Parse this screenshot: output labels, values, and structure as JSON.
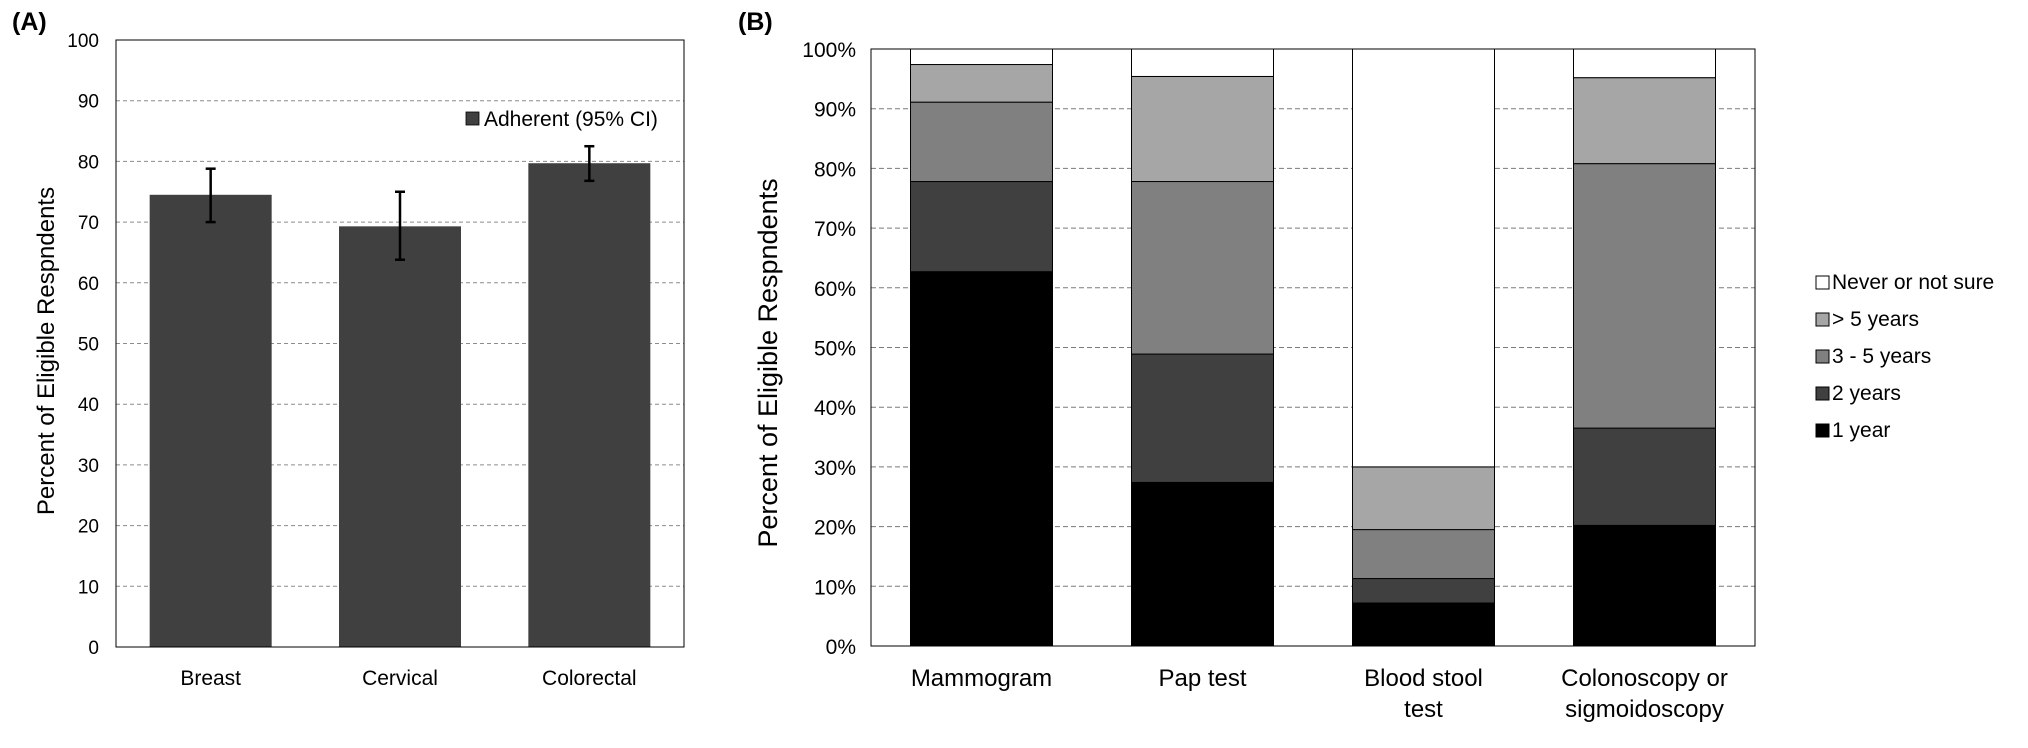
{
  "chart_data": [
    {
      "panel_label": "(A)",
      "type": "bar",
      "categories": [
        "Breast",
        "Cervical",
        "Colorectal"
      ],
      "series": [
        {
          "name": "Adherent (95% CI)",
          "values": [
            74.5,
            69.3,
            79.7
          ],
          "ci_low": [
            70.0,
            63.8,
            76.8
          ],
          "ci_high": [
            78.8,
            75.0,
            82.5
          ]
        }
      ],
      "ylabel": "Percent of Eligible Respndents",
      "ylim": [
        0,
        100
      ],
      "yticks": [
        "0",
        "10",
        "20",
        "30",
        "40",
        "50",
        "60",
        "70",
        "80",
        "90",
        "100"
      ],
      "grid": true,
      "legend": "top-right",
      "colors": {
        "bar": "#404040"
      }
    },
    {
      "panel_label": "(B)",
      "type": "bar",
      "stacked": true,
      "categories": [
        [
          "Mammogram"
        ],
        [
          "Pap test"
        ],
        [
          "Blood stool",
          "test"
        ],
        [
          "Colonoscopy or",
          "sigmoidoscopy"
        ]
      ],
      "series": [
        {
          "name": "1 year",
          "color": "#000000",
          "values": [
            62.7,
            27.4,
            7.2,
            20.2
          ]
        },
        {
          "name": "2 years",
          "color": "#404040",
          "values": [
            15.1,
            21.5,
            4.1,
            16.3
          ]
        },
        {
          "name": "3 - 5 years",
          "color": "#808080",
          "values": [
            13.3,
            28.9,
            8.2,
            44.3
          ]
        },
        {
          "name": "> 5 years",
          "color": "#a6a6a6",
          "values": [
            6.3,
            17.6,
            10.5,
            14.4
          ]
        },
        {
          "name": "Never or not sure",
          "color": "#ffffff",
          "values": [
            2.6,
            4.6,
            70.0,
            4.8
          ]
        }
      ],
      "ylabel": "Percent of Eligible Respndents",
      "ylim": [
        0,
        100
      ],
      "yticks": [
        "0%",
        "10%",
        "20%",
        "30%",
        "40%",
        "50%",
        "60%",
        "70%",
        "80%",
        "90%",
        "100%"
      ],
      "grid": true,
      "legend": "right"
    }
  ]
}
